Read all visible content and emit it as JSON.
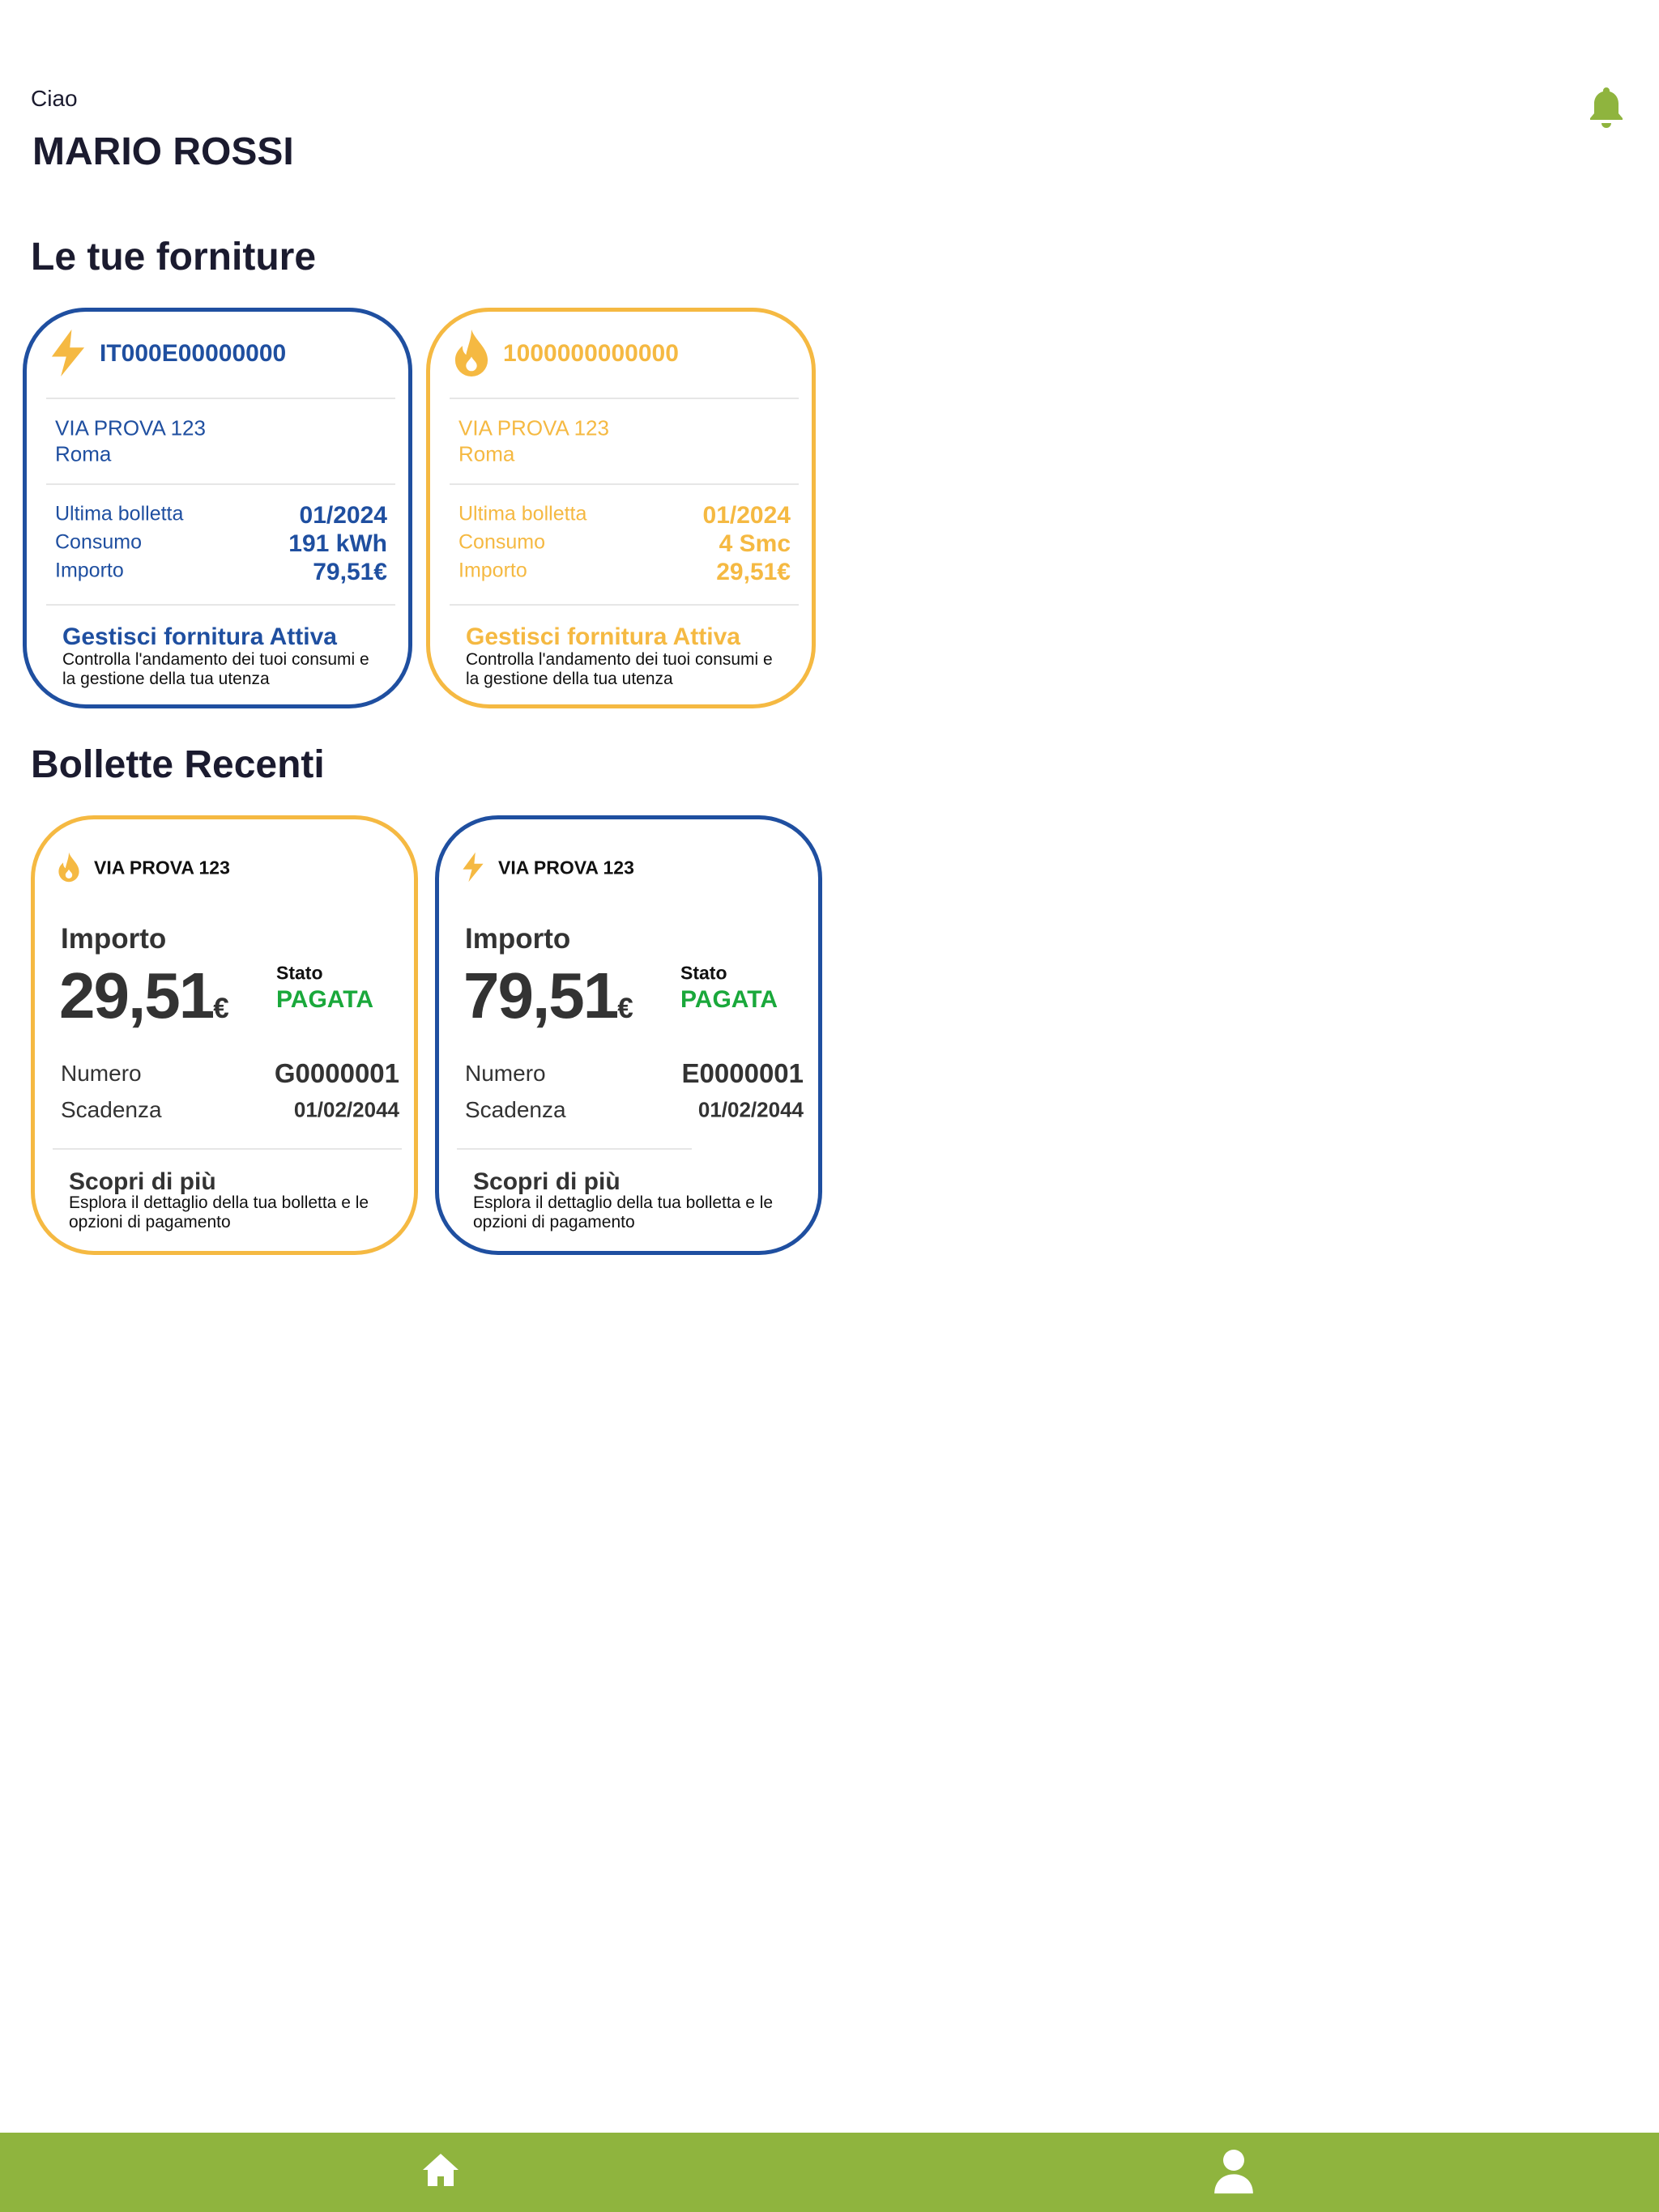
{
  "header": {
    "greeting": "Ciao",
    "name": "MARIO ROSSI"
  },
  "supplies": {
    "title": "Le tue forniture",
    "cards": [
      {
        "kind": "electricity",
        "color": "#1f4fa0",
        "code": "IT000E00000000",
        "address": "VIA PROVA 123",
        "city": "Roma",
        "labels": [
          "Ultima bolletta",
          "Consumo",
          "Importo"
        ],
        "values": [
          "01/2024",
          "191 kWh",
          "79,51€"
        ],
        "action": "Gestisci fornitura Attiva",
        "description": "Controlla l'andamento dei tuoi consumi e la gestione della tua utenza"
      },
      {
        "kind": "gas",
        "color": "#f5b942",
        "code": "1000000000000",
        "address": "VIA PROVA 123",
        "city": "Roma",
        "labels": [
          "Ultima bolletta",
          "Consumo",
          "Importo"
        ],
        "values": [
          "01/2024",
          "4  Smc",
          "29,51€"
        ],
        "action": "Gestisci fornitura Attiva",
        "description": "Controlla l'andamento dei tuoi consumi e la gestione della tua utenza"
      }
    ]
  },
  "bills": {
    "title": "Bollette Recenti",
    "cards": [
      {
        "kind": "gas",
        "color": "#f5b942",
        "address": "VIA PROVA 123",
        "amount_label": "Importo",
        "amount": "29,51",
        "currency": "€",
        "status_label": "Stato",
        "status": "PAGATA",
        "number_label": "Numero",
        "number": "G0000001",
        "due_label": "Scadenza",
        "due": "01/02/2044",
        "action": "Scopri di più",
        "description": "Esplora il dettaglio della tua bolletta e le opzioni di pagamento"
      },
      {
        "kind": "electricity",
        "color": "#1f4fa0",
        "address": "VIA PROVA 123",
        "amount_label": "Importo",
        "amount": "79,51",
        "currency": "€",
        "status_label": "Stato",
        "status": "PAGATA",
        "number_label": "Numero",
        "number": "E0000001",
        "due_label": "Scadenza",
        "due": "01/02/2044",
        "action": "Scopri di più",
        "description": "Esplora il dettaglio della tua bolletta e le opzioni di pagamento"
      }
    ]
  }
}
